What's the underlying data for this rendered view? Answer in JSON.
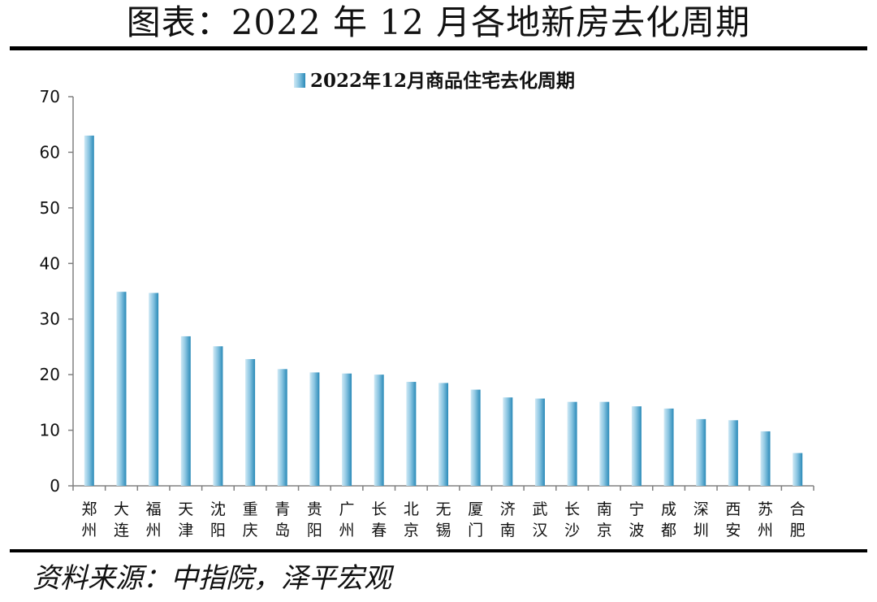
{
  "header": {
    "title": "图表：2022 年 12 月各地新房去化周期"
  },
  "footer": {
    "source": "资料来源：中指院，泽平宏观"
  },
  "colors": {
    "bar_light": "#a9d6ea",
    "bar_dark": "#2a8ab8",
    "axis": "#808080"
  },
  "chart_data": {
    "type": "bar",
    "title": "",
    "xlabel": "",
    "ylabel": "",
    "legend": "top",
    "grid": false,
    "ylim": [
      0,
      70
    ],
    "yticks": [
      0,
      10,
      20,
      30,
      40,
      50,
      60,
      70
    ],
    "categories": [
      "郑州",
      "大连",
      "福州",
      "天津",
      "沈阳",
      "重庆",
      "青岛",
      "贵阳",
      "广州",
      "长春",
      "北京",
      "无锡",
      "厦门",
      "济南",
      "武汉",
      "长沙",
      "南京",
      "宁波",
      "成都",
      "深圳",
      "西安",
      "苏州",
      "合肥"
    ],
    "series": [
      {
        "name": "2022年12月商品住宅去化周期",
        "values": [
          63.0,
          34.9,
          34.7,
          26.9,
          25.1,
          22.8,
          21.0,
          20.4,
          20.2,
          20.0,
          18.7,
          18.5,
          17.3,
          15.9,
          15.7,
          15.1,
          15.1,
          14.3,
          13.9,
          12.0,
          11.8,
          9.8,
          5.9
        ]
      }
    ]
  }
}
